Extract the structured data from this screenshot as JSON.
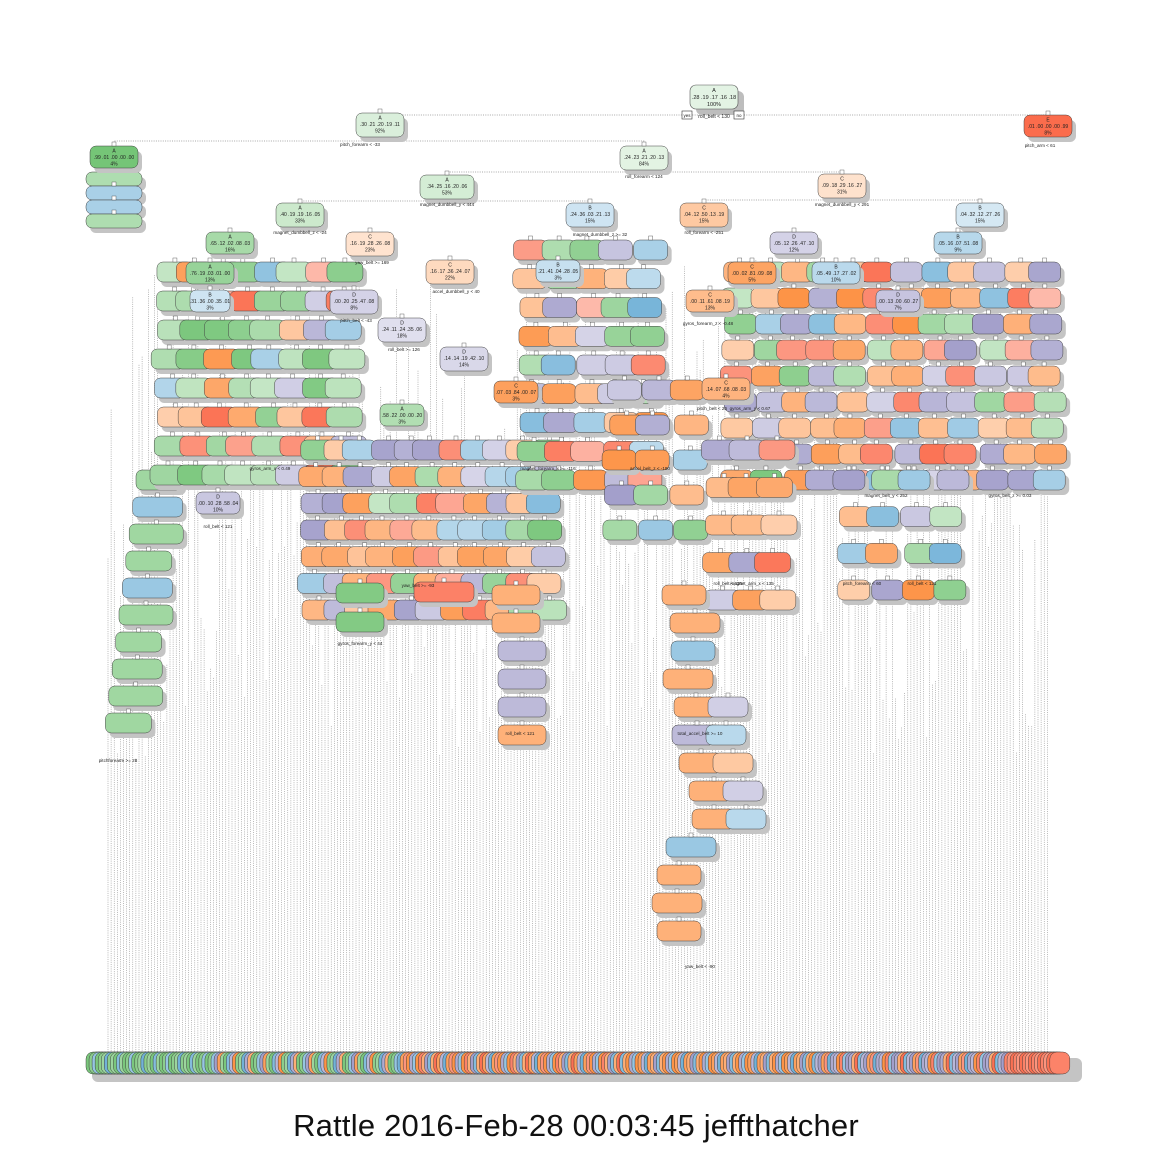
{
  "caption": "Rattle 2016-Feb-28 00:03:45 jeffthatcher",
  "colors": {
    "A": "#74c476",
    "B": "#6baed6",
    "C": "#fd8d3c",
    "D": "#9e9ac8",
    "E": "#fb6a4a",
    "line": "#555555",
    "background": "#ffffff"
  },
  "root": {
    "class": "A",
    "probs": ".28 .19 .17 .16 .18",
    "pct": "100%",
    "yes_label": "yes",
    "no_label": "no"
  },
  "nodes": [
    {
      "id": "n2",
      "class": "A",
      "probs": ".30 .21 .20 .19 .11",
      "pct": "92%"
    },
    {
      "id": "n3",
      "class": "E",
      "probs": ".01 .00 .00 .00 .99",
      "pct": "8%"
    },
    {
      "id": "n4",
      "class": "A",
      "probs": ".99 .01 .00 .00 .00",
      "pct": "4%"
    },
    {
      "id": "n5",
      "class": "A",
      "probs": ".24 .23 .21 .20 .13",
      "pct": "84%"
    },
    {
      "id": "n10",
      "class": "A",
      "probs": ".34 .25 .16 .20 .06",
      "pct": "53%"
    },
    {
      "id": "n11",
      "class": "C",
      "probs": ".09 .18 .29 .16 .27",
      "pct": "31%"
    },
    {
      "id": "n20",
      "class": "A",
      "probs": ".40 .19 .19 .16 .05",
      "pct": "33%"
    },
    {
      "id": "n21",
      "class": "B",
      "probs": ".24 .36 .03 .21 .13",
      "pct": "15%"
    },
    {
      "id": "n22",
      "class": "C",
      "probs": ".04 .12 .50 .13 .19",
      "pct": "15%"
    },
    {
      "id": "n23",
      "class": "B",
      "probs": ".04 .32 .12 .27 .26",
      "pct": "15%"
    },
    {
      "id": "n40",
      "class": "A",
      "probs": ".65 .12 .02 .08 .03",
      "pct": "16%"
    },
    {
      "id": "n41",
      "class": "C",
      "probs": ".16 .19 .28 .26 .08",
      "pct": "23%"
    },
    {
      "id": "n82",
      "class": "C",
      "probs": ".16 .17 .36 .24 .07",
      "pct": "22%"
    },
    {
      "id": "n83",
      "class": "D",
      "probs": ".00 .20 .25 .47 .08",
      "pct": "8%"
    },
    {
      "id": "n84",
      "class": "D",
      "probs": ".24 .11 .24 .35 .06",
      "pct": "18%"
    },
    {
      "id": "n85",
      "class": "D",
      "probs": ".14 .14 .19 .42 .10",
      "pct": "14%"
    },
    {
      "id": "n44",
      "class": "C",
      "probs": ".00 .11 .61 .08 .19",
      "pct": "13%"
    },
    {
      "id": "n45",
      "class": "D",
      "probs": ".05 .12 .26 .47 .10",
      "pct": "12%"
    },
    {
      "id": "n46",
      "class": "B",
      "probs": ".05 .49 .17 .27 .02",
      "pct": "10%"
    },
    {
      "id": "n47",
      "class": "B",
      "probs": ".05 .16 .07 .51 .08",
      "pct": "9%"
    },
    {
      "id": "n90",
      "class": "C",
      "probs": ".14 .07 .68 .08 .03",
      "pct": "4%"
    },
    {
      "id": "n160",
      "class": "A",
      "probs": ".76 .19 .03 .01 .00",
      "pct": "13%"
    },
    {
      "id": "n161",
      "class": "B",
      "probs": ".31 .36 .00 .35 .01",
      "pct": "3%"
    },
    {
      "id": "n170",
      "class": "C",
      "probs": ".07 .03 .84 .00 .07",
      "pct": "3%"
    },
    {
      "id": "n171",
      "class": "B",
      "probs": ".21 .41 .04 .28 .05",
      "pct": "3%"
    },
    {
      "id": "n180",
      "class": "D",
      "probs": ".00 .13 .00 .60 .27",
      "pct": "7%"
    },
    {
      "id": "n181",
      "class": "C",
      "probs": ".00 .02 .81 .09 .08",
      "pct": "5%"
    },
    {
      "id": "n182",
      "class": "A",
      "probs": ".58 .22 .00 .00 .20",
      "pct": "3%"
    },
    {
      "id": "n183",
      "class": "D",
      "probs": ".00 .10 .28 .58 .04",
      "pct": "10%"
    }
  ],
  "split_labels": [
    "roll_belt < 130",
    "pitch_forearm < -33",
    "pitch_arm < 61",
    "roll_forearm < 124",
    "magnet_dumbbell_y < 444",
    "magnet_dumbbell_y < 291",
    "magnet_dumbbell_z < -24",
    "roll_forearm < -251",
    "magnet_dumbbell_z >= 32",
    "yaw_belt >= 169",
    "accel_dumbbell_y < 40",
    "pitch_belt < -43",
    "roll_belt >= 126",
    "gyros_arm_x < 0.49",
    "gyros_forearm_z < -0.48",
    "gyros_belt_z >= 0.03",
    "roll_belt < 121",
    "magnet_forearm_x >= -116",
    "yaw_belt < -90",
    "roll_belt < 121",
    "magnet_arm_x < 135",
    "pitch_belt < 26",
    "total_accel_belt >= 10",
    "gyros_forearm_y < 44",
    "yaw_belt >= -93",
    "roll_belt < 125",
    "pitch_forearm < 60",
    "accel_belt_z < -190",
    "gyros_arm_y < 0.67",
    "pitchforearm >= 28",
    "magnet_belt_y < 252",
    "roll_belt < 121"
  ]
}
